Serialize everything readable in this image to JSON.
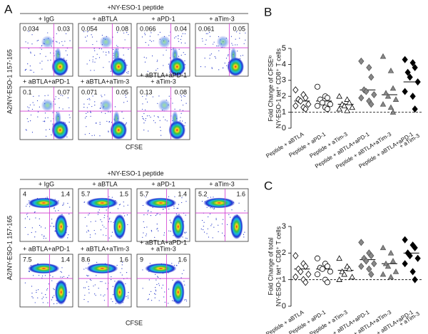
{
  "panel_a": {
    "letter": "A",
    "blocks": [
      {
        "header": "+NY-ESO-1 peptide",
        "ylabel": "A2/NY-ESO-1 157-165",
        "xlabel": "CFSE",
        "plots": [
          {
            "label": [
              "+ IgG"
            ],
            "left": 0.034,
            "right": 0.03
          },
          {
            "label": [
              "+ aBTLA"
            ],
            "left": 0.054,
            "right": 0.08
          },
          {
            "label": [
              "+ aPD-1"
            ],
            "left": 0.066,
            "right": 0.04
          },
          {
            "label": [
              "+ aTim-3"
            ],
            "left": 0.061,
            "right": 0.05
          },
          {
            "label": [
              "+ aBTLA+aPD-1"
            ],
            "left": 0.1,
            "right": 0.07
          },
          {
            "label": [
              "+ aBTLA+aTim-3"
            ],
            "left": 0.071,
            "right": 0.05
          },
          {
            "label": [
              "+ aBTLA+aPD-1",
              "+ aTim-3"
            ],
            "left": 0.13,
            "right": 0.08
          }
        ]
      },
      {
        "header": "+NY-ESO-1 peptide",
        "ylabel": "A2/NY-ESO-1 157-165",
        "xlabel": "CFSE",
        "plots": [
          {
            "label": [
              "+ IgG"
            ],
            "left": 4,
            "right": 1.4
          },
          {
            "label": [
              "+ aBTLA"
            ],
            "left": 5.7,
            "right": 1.5
          },
          {
            "label": [
              "+ aPD-1"
            ],
            "left": 5.7,
            "right": 1.4
          },
          {
            "label": [
              "+ aTim-3"
            ],
            "left": 5.2,
            "right": 1.6
          },
          {
            "label": [
              "+ aBTLA+aPD-1"
            ],
            "left": 7.5,
            "right": 1.4
          },
          {
            "label": [
              "+ aBTLA+aTim-3"
            ],
            "left": 8.6,
            "right": 1.6
          },
          {
            "label": [
              "+ aBTLA+aPD-1",
              "+ aTim-3"
            ],
            "left": 9,
            "right": 1.6
          }
        ]
      }
    ]
  },
  "chart_data": [
    {
      "type": "scatter",
      "panel": "B",
      "ylabel": [
        "Fold Change of CFSEˡᵒ",
        "NY-ESO-1 tet⁺ CD8⁺ T cells"
      ],
      "categories": [
        [
          "Peptide + aBTLA"
        ],
        [
          "Peptide + aPD-1"
        ],
        [
          "Peptide + aTim-3"
        ],
        [
          "Peptide + aBTLA+aPD-1"
        ],
        [
          "Peptide + aBTLA+aTim-3"
        ],
        [
          "Peptide + aBTLA+aPD-1",
          "+ aTim-3"
        ]
      ],
      "values": [
        [
          2.4,
          2.1,
          1.9,
          1.8,
          1.7,
          1.5,
          1.4,
          1.3,
          1.2
        ],
        [
          2.6,
          2.0,
          1.9,
          1.8,
          1.6,
          1.5,
          1.4,
          1.3,
          1.2
        ],
        [
          2.0,
          1.8,
          1.6,
          1.5,
          1.4,
          1.3,
          1.2,
          1.1
        ],
        [
          4.2,
          3.8,
          3.2,
          2.4,
          2.3,
          2.1,
          1.9,
          1.7,
          1.5
        ],
        [
          4.5,
          3.6,
          2.5,
          2.2,
          2.0,
          1.8,
          1.5,
          1.3,
          1.0
        ],
        [
          4.3,
          4.1,
          3.8,
          3.5,
          3.2,
          2.9,
          2.3,
          2.0,
          1.2
        ]
      ],
      "means": [
        1.7,
        1.7,
        1.5,
        2.4,
        2.1,
        2.9
      ],
      "markers": [
        "diamond",
        "circle",
        "triangle",
        "diamond",
        "triangle",
        "diamond"
      ],
      "colors": [
        "#ffffff",
        "#ffffff",
        "#ffffff",
        "#888888",
        "#888888",
        "#000000"
      ],
      "reference_line": 1,
      "ylim": [
        0,
        5
      ],
      "yticks": [
        0,
        1,
        2,
        3,
        4,
        5
      ]
    },
    {
      "type": "scatter",
      "panel": "C",
      "ylabel": [
        "Fold Change of total",
        "NY-ESO-1 tet⁺ CD8⁺ T cells"
      ],
      "categories": [
        [
          "Peptide + aBTLA"
        ],
        [
          "Peptide + aPD-1"
        ],
        [
          "Peptide + aTim-3"
        ],
        [
          "Peptide + aBTLA+aPD-1"
        ],
        [
          "Peptide + aBTLA+aTim-3"
        ],
        [
          "Peptide + aBTLA+aPD-1",
          "+ aTim-3"
        ]
      ],
      "values": [
        [
          1.9,
          1.6,
          1.5,
          1.4,
          1.3,
          1.2,
          1.1,
          1.0,
          0.9
        ],
        [
          1.8,
          1.6,
          1.5,
          1.45,
          1.4,
          1.3,
          1.2,
          1.0,
          0.9
        ],
        [
          1.8,
          1.5,
          1.4,
          1.3,
          1.2,
          1.1,
          1.0
        ],
        [
          2.4,
          2.0,
          1.9,
          1.8,
          1.7,
          1.6,
          1.5,
          1.4,
          1.2
        ],
        [
          2.2,
          2.0,
          1.7,
          1.6,
          1.5,
          1.3,
          1.2,
          1.1
        ],
        [
          2.5,
          2.3,
          2.2,
          2.0,
          1.9,
          1.8,
          1.6,
          1.3,
          1.0
        ]
      ],
      "means": [
        1.4,
        1.4,
        1.35,
        1.75,
        1.6,
        2.0
      ],
      "markers": [
        "diamond",
        "circle",
        "triangle",
        "diamond",
        "triangle",
        "diamond"
      ],
      "colors": [
        "#ffffff",
        "#ffffff",
        "#ffffff",
        "#888888",
        "#888888",
        "#000000"
      ],
      "reference_line": 1,
      "ylim": [
        0,
        3
      ],
      "yticks": [
        0,
        1,
        2,
        3
      ]
    }
  ]
}
